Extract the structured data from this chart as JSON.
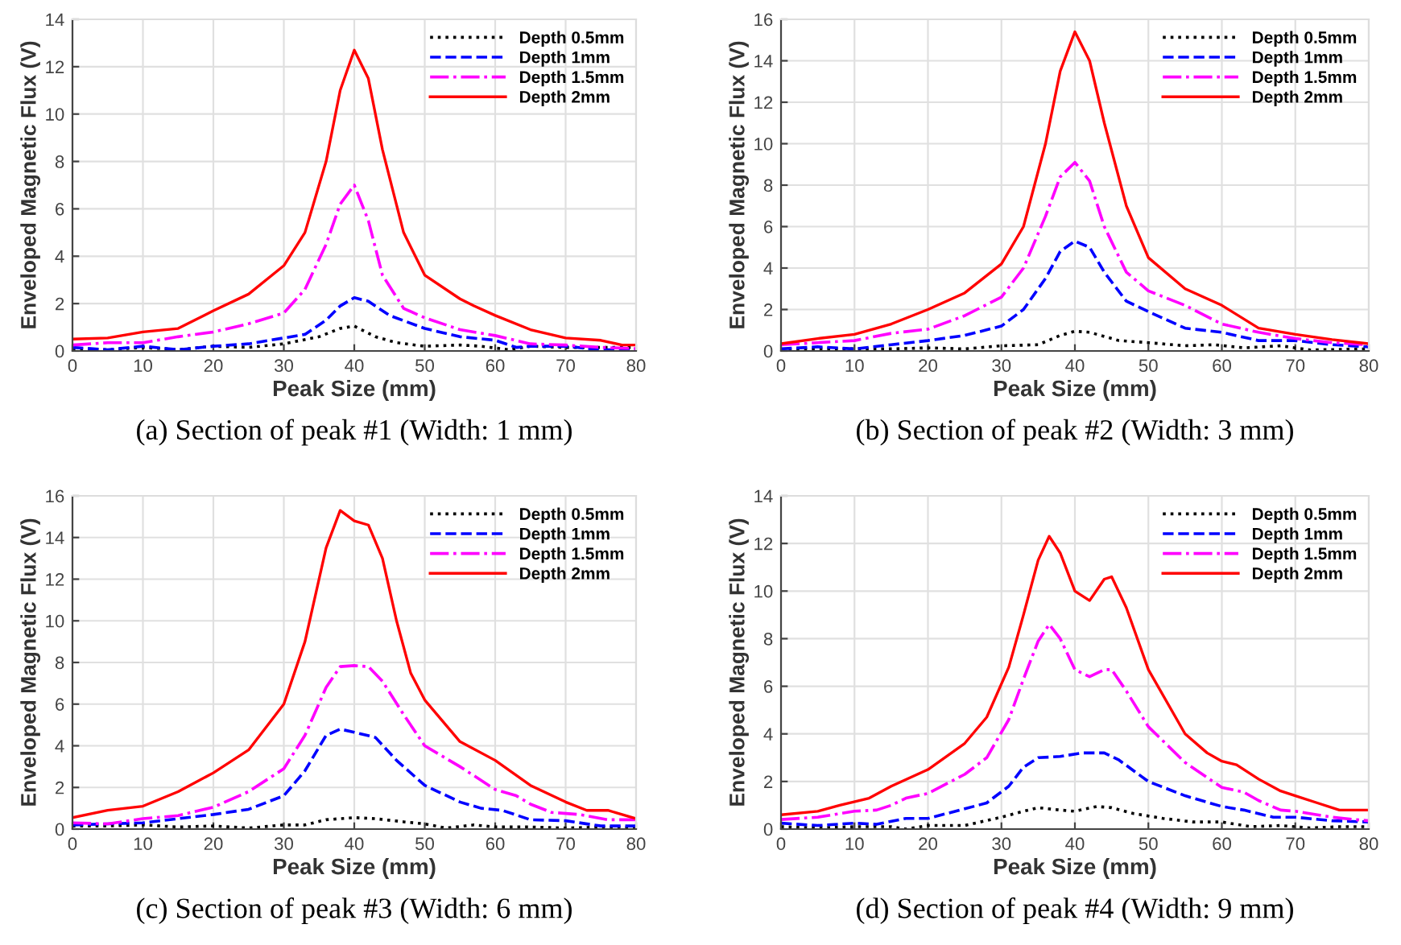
{
  "chart_data": [
    {
      "type": "line",
      "title": "(a) Section of peak #1 (Width: 1 mm)",
      "xlabel": "Peak Size (mm)",
      "ylabel": "Enveloped Magnetic Flux (V)",
      "xlim": [
        0,
        80
      ],
      "xticks": [
        0,
        10,
        20,
        30,
        40,
        50,
        60,
        70,
        80
      ],
      "ylim": [
        0,
        14
      ],
      "yticks": [
        0,
        2,
        4,
        6,
        8,
        10,
        12,
        14
      ],
      "grid": true,
      "legend": "top right",
      "marker": "none",
      "series": [
        {
          "name": "Depth 0.5mm",
          "color": "#000000",
          "line_style": "dotted",
          "x": [
            0,
            5,
            10,
            15,
            20,
            25,
            30,
            35,
            38,
            40,
            43,
            46,
            50,
            55,
            58,
            62,
            65,
            70,
            75,
            80
          ],
          "values": [
            0.1,
            0.05,
            0.15,
            0.05,
            0.2,
            0.15,
            0.3,
            0.6,
            0.95,
            1.05,
            0.6,
            0.35,
            0.2,
            0.25,
            0.2,
            0.05,
            0.2,
            0.15,
            0.15,
            0.15
          ]
        },
        {
          "name": "Depth 1mm",
          "color": "#0000ff",
          "line_style": "dashed",
          "x": [
            0,
            5,
            10,
            15,
            20,
            25,
            30,
            33,
            36,
            38,
            40,
            42,
            45,
            50,
            55,
            60,
            63,
            65,
            70,
            75,
            80
          ],
          "values": [
            0.15,
            0.05,
            0.2,
            0.05,
            0.2,
            0.3,
            0.55,
            0.7,
            1.3,
            1.9,
            2.25,
            2.1,
            1.5,
            0.95,
            0.6,
            0.45,
            0.15,
            0.2,
            0.2,
            0.05,
            0.05
          ]
        },
        {
          "name": "Depth 1.5mm",
          "color": "#ff00ff",
          "line_style": "dashdot",
          "x": [
            0,
            5,
            10,
            15,
            20,
            25,
            30,
            33,
            36,
            38,
            40,
            42,
            44,
            47,
            50,
            55,
            60,
            65,
            70,
            75,
            80
          ],
          "values": [
            0.25,
            0.35,
            0.35,
            0.6,
            0.8,
            1.15,
            1.6,
            2.6,
            4.5,
            6.2,
            7.0,
            5.5,
            3.2,
            1.8,
            1.4,
            0.9,
            0.65,
            0.3,
            0.25,
            0.15,
            0.1
          ]
        },
        {
          "name": "Depth 2mm",
          "color": "#ff0000",
          "line_style": "solid",
          "x": [
            0,
            5,
            10,
            15,
            20,
            25,
            30,
            33,
            36,
            38,
            40,
            42,
            44,
            47,
            50,
            55,
            57,
            60,
            65,
            70,
            75,
            78,
            80
          ],
          "values": [
            0.5,
            0.55,
            0.8,
            0.95,
            1.7,
            2.4,
            3.6,
            5.0,
            8.0,
            11.0,
            12.7,
            11.5,
            8.5,
            5.0,
            3.2,
            2.2,
            1.9,
            1.5,
            0.9,
            0.55,
            0.45,
            0.25,
            0.25
          ]
        }
      ]
    },
    {
      "type": "line",
      "title": "(b) Section of peak #2 (Width: 3 mm)",
      "xlabel": "Peak Size (mm)",
      "ylabel": "Enveloped Magnetic Flux (V)",
      "xlim": [
        0,
        80
      ],
      "xticks": [
        0,
        10,
        20,
        30,
        40,
        50,
        60,
        70,
        80
      ],
      "ylim": [
        0,
        16
      ],
      "yticks": [
        0,
        2,
        4,
        6,
        8,
        10,
        12,
        14,
        16
      ],
      "grid": true,
      "legend": "top right",
      "marker": "none",
      "series": [
        {
          "name": "Depth 0.5mm",
          "color": "#000000",
          "line_style": "dotted",
          "x": [
            0,
            5,
            10,
            15,
            20,
            25,
            30,
            35,
            38,
            40,
            42,
            46,
            50,
            55,
            59,
            63,
            68,
            72,
            80
          ],
          "values": [
            0.05,
            0.1,
            0.1,
            0.1,
            0.15,
            0.1,
            0.25,
            0.3,
            0.75,
            0.95,
            0.9,
            0.5,
            0.4,
            0.25,
            0.3,
            0.15,
            0.25,
            0.05,
            0.1
          ]
        },
        {
          "name": "Depth 1mm",
          "color": "#0000ff",
          "line_style": "dashed",
          "x": [
            0,
            5,
            10,
            15,
            20,
            25,
            30,
            33,
            36,
            38,
            40,
            42,
            44,
            47,
            50,
            55,
            60,
            65,
            70,
            75,
            80
          ],
          "values": [
            0.1,
            0.2,
            0.1,
            0.3,
            0.5,
            0.75,
            1.2,
            2.0,
            3.5,
            4.8,
            5.3,
            5.0,
            3.8,
            2.4,
            1.9,
            1.1,
            0.9,
            0.5,
            0.5,
            0.3,
            0.2
          ]
        },
        {
          "name": "Depth 1.5mm",
          "color": "#ff00ff",
          "line_style": "dashdot",
          "x": [
            0,
            5,
            10,
            15,
            20,
            25,
            30,
            33,
            36,
            38,
            40,
            42,
            44,
            47,
            50,
            55,
            60,
            65,
            70,
            75,
            80
          ],
          "values": [
            0.3,
            0.4,
            0.5,
            0.85,
            1.05,
            1.7,
            2.6,
            4.0,
            6.5,
            8.4,
            9.1,
            8.2,
            6.0,
            3.8,
            2.9,
            2.2,
            1.3,
            0.9,
            0.6,
            0.4,
            0.3
          ]
        },
        {
          "name": "Depth 2mm",
          "color": "#ff0000",
          "line_style": "solid",
          "x": [
            0,
            5,
            10,
            15,
            20,
            25,
            30,
            33,
            36,
            38,
            40,
            42,
            44,
            47,
            50,
            55,
            60,
            65,
            70,
            75,
            80
          ],
          "values": [
            0.35,
            0.6,
            0.8,
            1.3,
            2.0,
            2.8,
            4.2,
            6.0,
            10.0,
            13.5,
            15.4,
            14.0,
            11.0,
            7.0,
            4.5,
            3.0,
            2.2,
            1.1,
            0.8,
            0.55,
            0.35
          ]
        }
      ]
    },
    {
      "type": "line",
      "title": "(c) Section of peak #3 (Width: 6 mm)",
      "xlabel": "Peak Size (mm)",
      "ylabel": "Enveloped Magnetic Flux (V)",
      "xlim": [
        0,
        80
      ],
      "xticks": [
        0,
        10,
        20,
        30,
        40,
        50,
        60,
        70,
        80
      ],
      "ylim": [
        0,
        16
      ],
      "yticks": [
        0,
        2,
        4,
        6,
        8,
        10,
        12,
        14,
        16
      ],
      "grid": true,
      "legend": "top right",
      "marker": "none",
      "series": [
        {
          "name": "Depth 0.5mm",
          "color": "#000000",
          "line_style": "dotted",
          "x": [
            0,
            5,
            10,
            15,
            20,
            25,
            30,
            33,
            36,
            40,
            43,
            47,
            50,
            53,
            57,
            60,
            65,
            70,
            75,
            80
          ],
          "values": [
            0.15,
            0.15,
            0.2,
            0.1,
            0.15,
            0.05,
            0.2,
            0.2,
            0.45,
            0.55,
            0.5,
            0.35,
            0.25,
            0.05,
            0.2,
            0.1,
            0.1,
            0.05,
            0.1,
            0.05
          ]
        },
        {
          "name": "Depth 1mm",
          "color": "#0000ff",
          "line_style": "dashed",
          "x": [
            0,
            5,
            10,
            15,
            20,
            25,
            30,
            33,
            36,
            38,
            40,
            43,
            46,
            50,
            55,
            58,
            61,
            65,
            70,
            75,
            80
          ],
          "values": [
            0.2,
            0.25,
            0.3,
            0.5,
            0.7,
            0.95,
            1.6,
            2.8,
            4.5,
            4.8,
            4.65,
            4.4,
            3.3,
            2.1,
            1.3,
            1.0,
            0.9,
            0.45,
            0.4,
            0.15,
            0.15
          ]
        },
        {
          "name": "Depth 1.5mm",
          "color": "#ff00ff",
          "line_style": "dashdot",
          "x": [
            0,
            5,
            10,
            15,
            20,
            25,
            30,
            33,
            36,
            38,
            40,
            42,
            44,
            47,
            50,
            55,
            60,
            63,
            65,
            68,
            72,
            76,
            80
          ],
          "values": [
            0.3,
            0.25,
            0.5,
            0.65,
            1.05,
            1.8,
            2.9,
            4.5,
            6.8,
            7.8,
            7.85,
            7.8,
            7.1,
            5.5,
            4.0,
            3.0,
            1.9,
            1.6,
            1.2,
            0.8,
            0.7,
            0.45,
            0.45
          ]
        },
        {
          "name": "Depth 2mm",
          "color": "#ff0000",
          "line_style": "solid",
          "x": [
            0,
            5,
            10,
            15,
            20,
            25,
            30,
            33,
            36,
            38,
            40,
            42,
            44,
            46,
            48,
            50,
            55,
            60,
            65,
            70,
            73,
            76,
            80
          ],
          "values": [
            0.55,
            0.9,
            1.1,
            1.8,
            2.7,
            3.8,
            6.0,
            9.0,
            13.5,
            15.3,
            14.8,
            14.6,
            13.0,
            10.0,
            7.5,
            6.2,
            4.2,
            3.3,
            2.1,
            1.3,
            0.9,
            0.9,
            0.5
          ]
        }
      ]
    },
    {
      "type": "line",
      "title": "(d) Section of peak #4 (Width: 9 mm)",
      "xlabel": "Peak Size (mm)",
      "ylabel": "Enveloped Magnetic Flux (V)",
      "xlim": [
        0,
        80
      ],
      "xticks": [
        0,
        10,
        20,
        30,
        40,
        50,
        60,
        70,
        80
      ],
      "ylim": [
        0,
        14
      ],
      "yticks": [
        0,
        2,
        4,
        6,
        8,
        10,
        12,
        14
      ],
      "grid": true,
      "legend": "top right",
      "marker": "none",
      "series": [
        {
          "name": "Depth 0.5mm",
          "color": "#000000",
          "line_style": "dotted",
          "x": [
            0,
            5,
            10,
            15,
            17,
            20,
            25,
            30,
            33,
            35,
            38,
            40,
            43,
            45,
            48,
            52,
            56,
            60,
            64,
            68,
            72,
            76,
            80
          ],
          "values": [
            0.1,
            0.05,
            0.1,
            0.1,
            0.0,
            0.15,
            0.15,
            0.5,
            0.75,
            0.9,
            0.8,
            0.75,
            0.95,
            0.9,
            0.65,
            0.45,
            0.3,
            0.3,
            0.1,
            0.15,
            0.05,
            0.1,
            0.1
          ]
        },
        {
          "name": "Depth 1mm",
          "color": "#0000ff",
          "line_style": "dashed",
          "x": [
            0,
            5,
            10,
            13,
            17,
            20,
            25,
            28,
            31,
            33,
            35,
            38,
            41,
            44,
            46,
            50,
            55,
            60,
            63,
            67,
            70,
            75,
            80
          ],
          "values": [
            0.25,
            0.15,
            0.25,
            0.2,
            0.45,
            0.45,
            0.85,
            1.1,
            1.8,
            2.6,
            3.0,
            3.05,
            3.2,
            3.2,
            2.9,
            2.0,
            1.4,
            0.95,
            0.8,
            0.5,
            0.5,
            0.35,
            0.3
          ]
        },
        {
          "name": "Depth 1.5mm",
          "color": "#ff00ff",
          "line_style": "dashdot",
          "x": [
            0,
            5,
            10,
            13,
            15,
            17,
            20,
            25,
            28,
            31,
            33,
            35,
            36.5,
            38,
            40,
            42,
            44,
            45,
            47,
            50,
            55,
            60,
            63,
            65,
            68,
            70,
            75,
            78,
            80
          ],
          "values": [
            0.4,
            0.5,
            0.75,
            0.8,
            1.0,
            1.3,
            1.5,
            2.3,
            3.0,
            4.6,
            6.3,
            7.9,
            8.6,
            8.0,
            6.7,
            6.4,
            6.7,
            6.7,
            5.8,
            4.3,
            2.8,
            1.75,
            1.55,
            1.2,
            0.8,
            0.75,
            0.5,
            0.4,
            0.35
          ]
        },
        {
          "name": "Depth 2mm",
          "color": "#ff0000",
          "line_style": "solid",
          "x": [
            0,
            5,
            8,
            12,
            15,
            20,
            25,
            28,
            31,
            33,
            35,
            36.5,
            38,
            40,
            42,
            44,
            45,
            47,
            50,
            55,
            58,
            60,
            62,
            65,
            68,
            70,
            73,
            76,
            80
          ],
          "values": [
            0.6,
            0.75,
            1.0,
            1.3,
            1.8,
            2.5,
            3.6,
            4.7,
            6.8,
            9.0,
            11.3,
            12.3,
            11.6,
            10.0,
            9.6,
            10.5,
            10.6,
            9.3,
            6.7,
            4.0,
            3.2,
            2.85,
            2.7,
            2.1,
            1.6,
            1.4,
            1.1,
            0.8,
            0.8
          ]
        }
      ]
    }
  ]
}
